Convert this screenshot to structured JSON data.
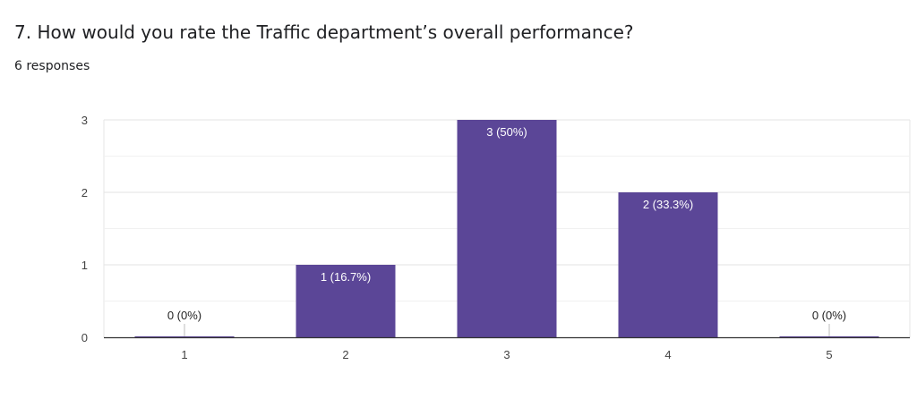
{
  "question": {
    "title": "7. How would you rate the Traffic department’s overall performance?",
    "responses": "6 responses"
  },
  "colors": {
    "bar": "#5b4697",
    "grid": "#e6e6e6",
    "axis": "#333333",
    "text": "#202124"
  },
  "chart_data": {
    "type": "bar",
    "title": "7. How would you rate the Traffic department’s overall performance?",
    "xlabel": "",
    "ylabel": "",
    "categories": [
      "1",
      "2",
      "3",
      "4",
      "5"
    ],
    "values": [
      0,
      1,
      3,
      2,
      0
    ],
    "data_labels": [
      "0 (0%)",
      "1 (16.7%)",
      "3 (50%)",
      "2 (33.3%)",
      "0 (0%)"
    ],
    "ylim": [
      0,
      3
    ],
    "yticks": [
      "0",
      "1",
      "2",
      "3"
    ],
    "grid": true
  }
}
